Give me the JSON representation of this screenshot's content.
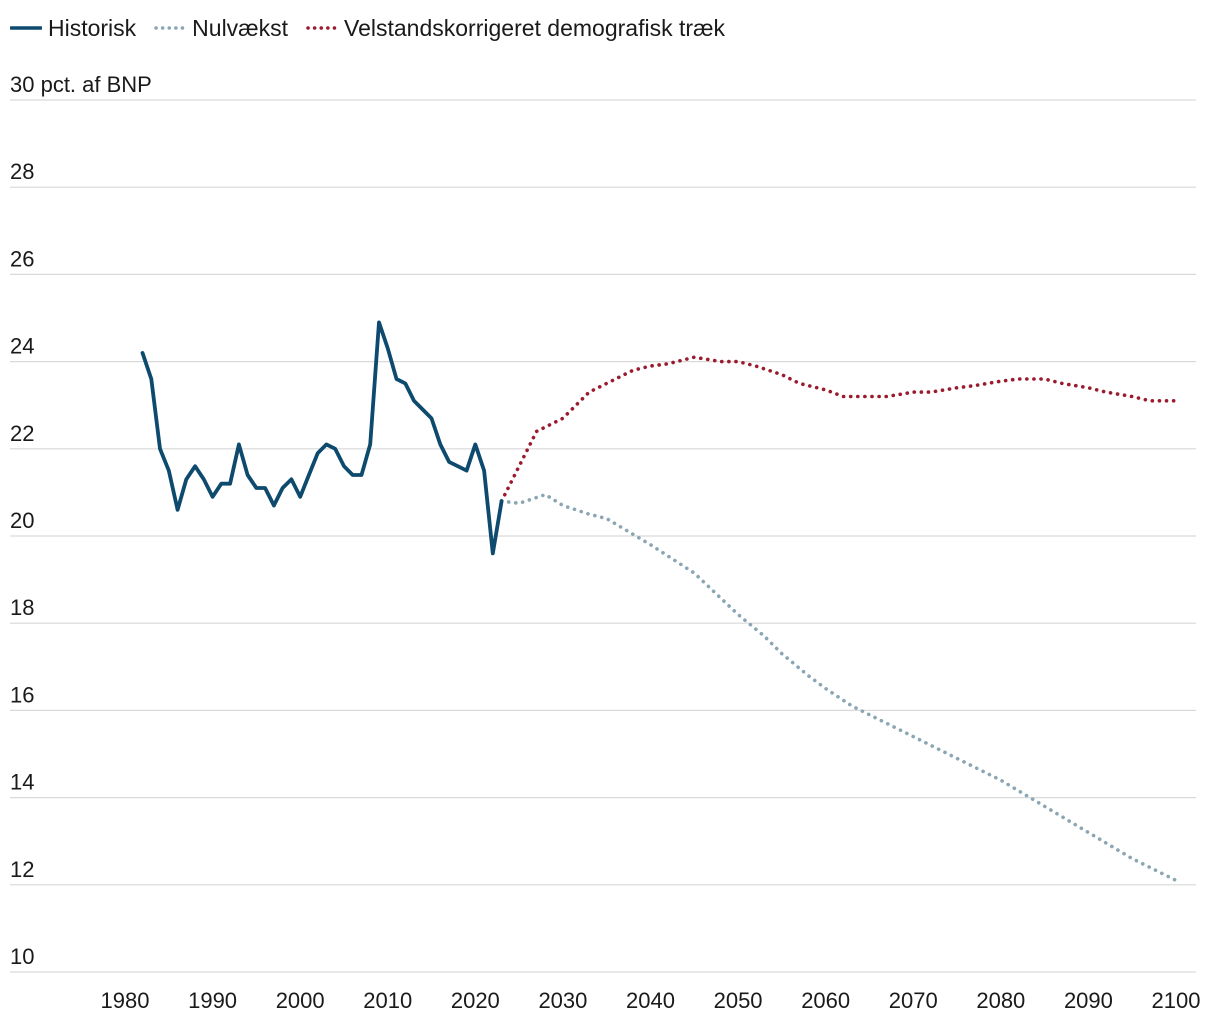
{
  "chart_data": {
    "type": "line",
    "title": "",
    "ylabel": "pct. af BNP",
    "y_top_label": "30 pct. af BNP",
    "xlabel": "",
    "ylim": [
      10,
      30
    ],
    "xlim": [
      1975,
      2102
    ],
    "y_ticks": [
      10,
      12,
      14,
      16,
      18,
      20,
      22,
      24,
      26,
      28,
      30
    ],
    "x_ticks": [
      1980,
      1990,
      2000,
      2010,
      2020,
      2030,
      2040,
      2050,
      2060,
      2070,
      2080,
      2090,
      2100
    ],
    "grid": true,
    "legend_position": "top-left",
    "series": [
      {
        "name": "Historisk",
        "style": "solid",
        "color": "#0d4a6e",
        "x": [
          1982,
          1983,
          1984,
          1985,
          1986,
          1987,
          1988,
          1989,
          1990,
          1991,
          1992,
          1993,
          1994,
          1995,
          1996,
          1997,
          1998,
          1999,
          2000,
          2001,
          2002,
          2003,
          2004,
          2005,
          2006,
          2007,
          2008,
          2009,
          2010,
          2011,
          2012,
          2013,
          2014,
          2015,
          2016,
          2017,
          2018,
          2019,
          2020,
          2021,
          2022,
          2023
        ],
        "values": [
          24.2,
          23.6,
          22.0,
          21.5,
          20.6,
          21.3,
          21.6,
          21.3,
          20.9,
          21.2,
          21.2,
          22.1,
          21.4,
          21.1,
          21.1,
          20.7,
          21.1,
          21.3,
          20.9,
          21.4,
          21.9,
          22.1,
          22.0,
          21.6,
          21.4,
          21.4,
          22.1,
          24.9,
          24.3,
          23.6,
          23.5,
          23.1,
          22.9,
          22.7,
          22.1,
          21.7,
          21.6,
          21.5,
          22.1,
          21.5,
          19.6,
          20.8
        ]
      },
      {
        "name": "Nulvækst",
        "style": "dotted",
        "color": "#8aa5b4",
        "x": [
          2023,
          2025,
          2028,
          2030,
          2033,
          2035,
          2040,
          2045,
          2050,
          2053,
          2055,
          2058,
          2060,
          2063,
          2065,
          2070,
          2075,
          2080,
          2085,
          2090,
          2095,
          2100
        ],
        "values": [
          20.8,
          20.75,
          20.95,
          20.7,
          20.5,
          20.4,
          19.8,
          19.15,
          18.2,
          17.7,
          17.3,
          16.8,
          16.5,
          16.1,
          15.9,
          15.4,
          14.9,
          14.4,
          13.8,
          13.2,
          12.6,
          12.1
        ]
      },
      {
        "name": "Velstandskorrigeret demografisk træk",
        "style": "dotted",
        "color": "#9b1b2e",
        "x": [
          2023,
          2025,
          2027,
          2030,
          2033,
          2035,
          2038,
          2040,
          2042,
          2045,
          2048,
          2050,
          2052,
          2055,
          2057,
          2060,
          2062,
          2065,
          2067,
          2070,
          2072,
          2075,
          2077,
          2080,
          2082,
          2085,
          2087,
          2090,
          2092,
          2095,
          2097,
          2100
        ],
        "values": [
          20.8,
          21.6,
          22.4,
          22.7,
          23.3,
          23.5,
          23.8,
          23.9,
          23.95,
          24.1,
          24.0,
          24.0,
          23.9,
          23.7,
          23.5,
          23.35,
          23.2,
          23.2,
          23.2,
          23.3,
          23.3,
          23.4,
          23.45,
          23.55,
          23.6,
          23.6,
          23.5,
          23.4,
          23.3,
          23.2,
          23.1,
          23.1
        ]
      }
    ]
  }
}
